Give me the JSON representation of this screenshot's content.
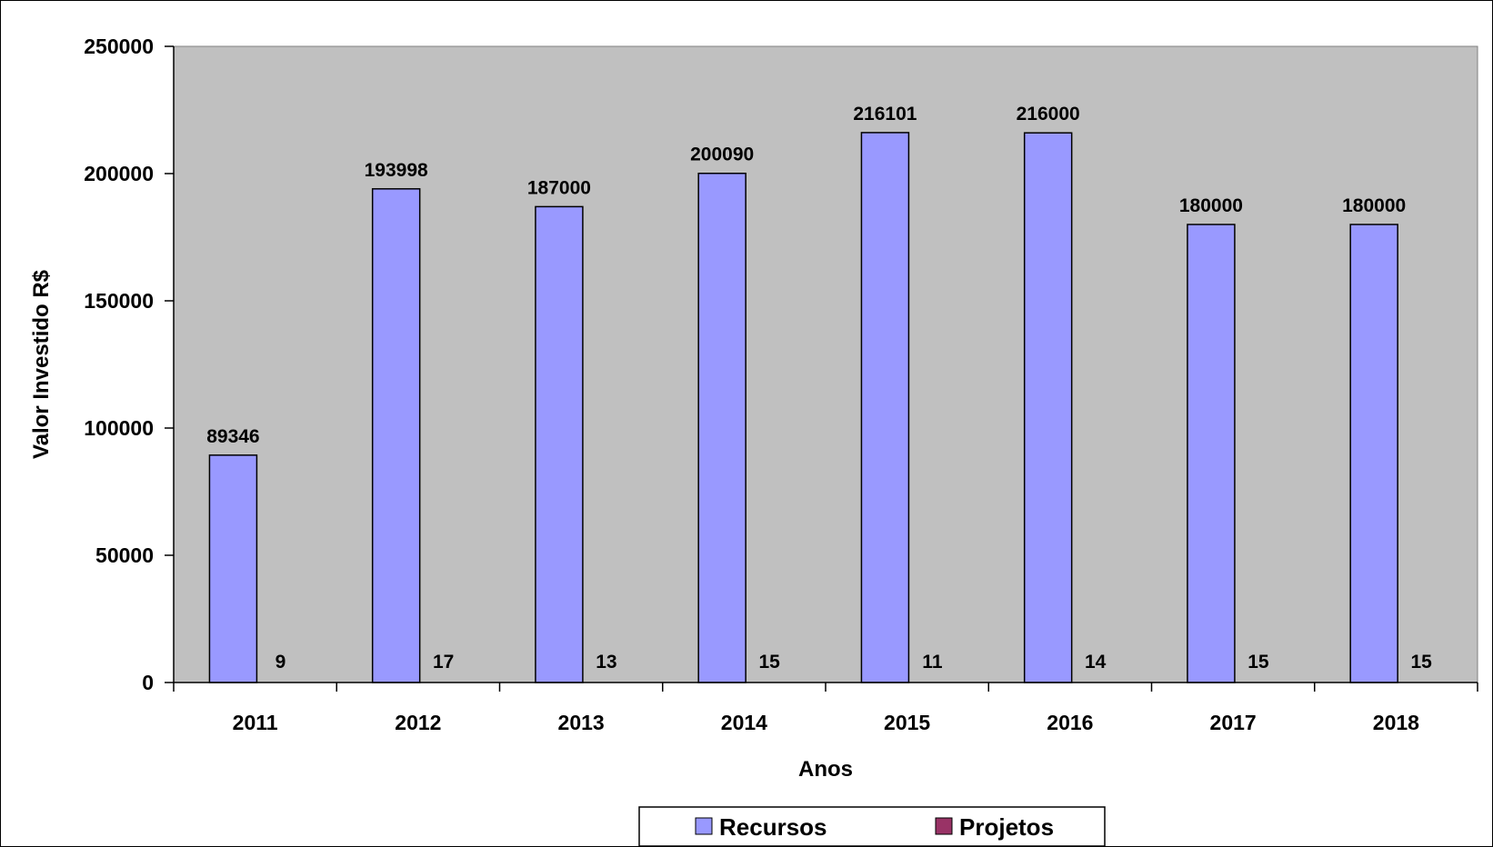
{
  "chart_data": {
    "type": "bar",
    "title": "",
    "xlabel": "Anos",
    "ylabel": "Valor Investido R$",
    "categories": [
      "2011",
      "2012",
      "2013",
      "2014",
      "2015",
      "2016",
      "2017",
      "2018"
    ],
    "series": [
      {
        "name": "Recursos",
        "values": [
          89346,
          193998,
          187000,
          200090,
          216101,
          216000,
          180000,
          180000
        ],
        "color": "#9999ff"
      },
      {
        "name": "Projetos",
        "values": [
          9,
          17,
          13,
          15,
          11,
          14,
          15,
          15
        ],
        "color": "#993366"
      }
    ],
    "ylim": [
      0,
      250000
    ],
    "yticks": [
      0,
      50000,
      100000,
      150000,
      200000,
      250000
    ],
    "grid": false,
    "plot_background": "#c0c0c0",
    "legend_position": "bottom-center"
  }
}
